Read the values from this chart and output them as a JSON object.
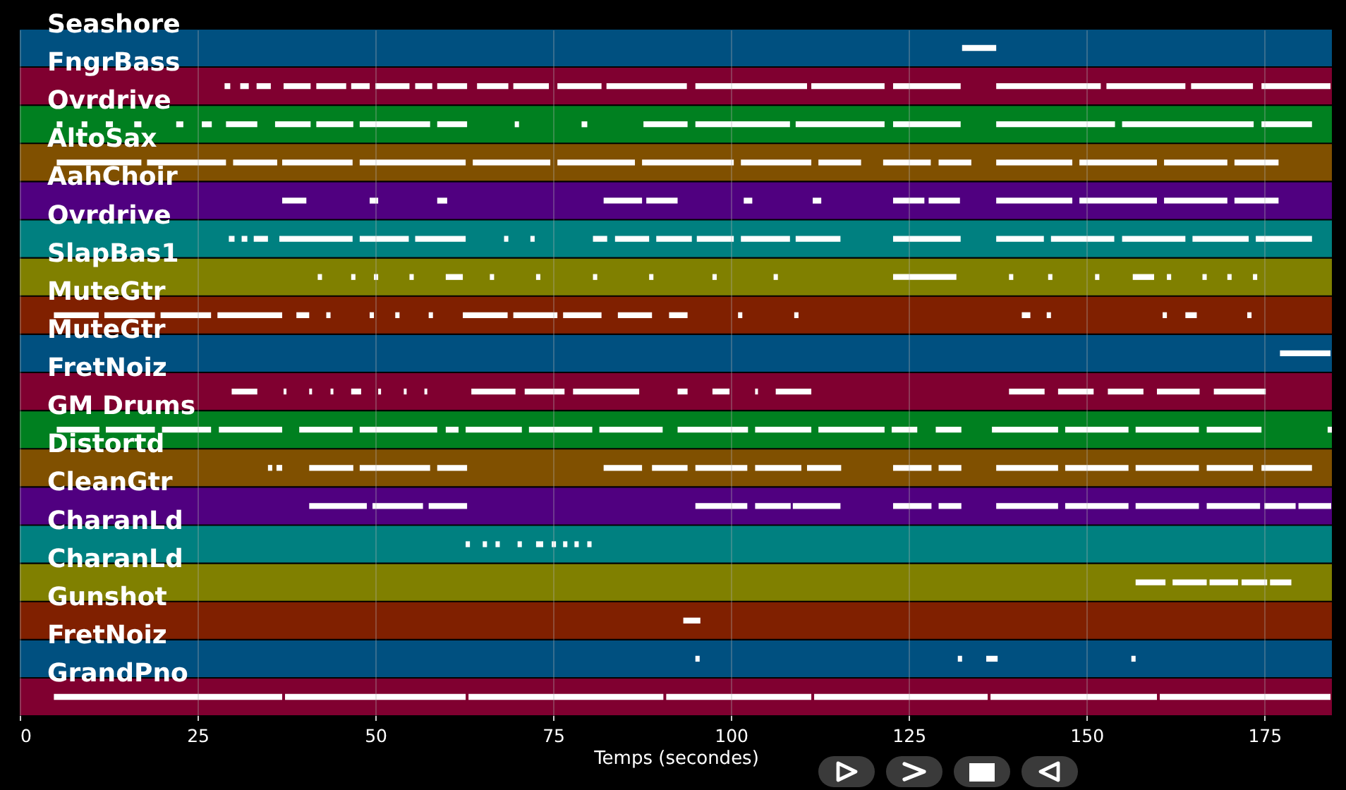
{
  "chart_data": {
    "type": "bar",
    "orientation": "horizontal",
    "xlabel": "Temps (secondes)",
    "categories": [
      "Seashore",
      "FngrBass",
      "Ovrdrive",
      "AltoSax",
      "AahChoir",
      "Ovrdrive",
      "SlapBas1",
      "MuteGtr",
      "MuteGtr",
      "FretNoiz",
      "GM Drums",
      "Distortd",
      "CleanGtr",
      "CharanLd",
      "CharanLd",
      "Gunshot",
      "FretNoiz",
      "GrandPno"
    ],
    "xlim": [
      0,
      184.5
    ],
    "xticks": [
      0,
      25,
      50,
      75,
      100,
      125,
      150,
      175
    ],
    "grid": "x",
    "series": [
      {
        "colors": [
          "#005080",
          "#800030",
          "#008020",
          "#805000",
          "#500080",
          "#008080",
          "#808000",
          "#802000",
          "#005080",
          "#800030",
          "#008020",
          "#805000",
          "#500080",
          "#008080",
          "#808000",
          "#802000",
          "#005080",
          "#800030"
        ],
        "values": [
          184.5,
          184.5,
          184.5,
          184.5,
          184.5,
          184.5,
          184.5,
          184.5,
          184.5,
          184.5,
          184.5,
          184.5,
          184.5,
          184.5,
          184.5,
          184.5,
          184.5,
          184.5
        ]
      },
      {
        "color": "#ffffff",
        "base": [
          132.5,
          28.8,
          5.2,
          5.2,
          36.9,
          29.4,
          41.9,
          4.8,
          177.2,
          29.8,
          5.2,
          34.9,
          40.7,
          62.7,
          156.9,
          93.3,
          95.0,
          4.8
        ],
        "values": [
          4.8,
          0.8,
          0.8,
          11.9,
          3.4,
          0.8,
          0.6,
          6.3,
          7.1,
          3.6,
          6.0,
          0.6,
          8.1,
          0.6,
          4.2,
          2.4,
          0.6,
          32.1
        ]
      },
      {
        "color": "#ffffff",
        "base": [
          null,
          31.0,
          8.7,
          17.9,
          49.2,
          31.2,
          46.6,
          11.9,
          null,
          37.1,
          12.1,
          36.1,
          49.6,
          65.1,
          162.1,
          null,
          131.9,
          37.3
        ],
        "values": [
          null,
          1.2,
          0.8,
          11.1,
          1.2,
          0.8,
          0.6,
          7.1,
          null,
          0.4,
          6.9,
          0.8,
          7.1,
          0.6,
          4.8,
          null,
          0.6,
          25.4
        ]
      },
      {
        "color": "#ffffff",
        "base": [
          null,
          33.3,
          12.1,
          30.0,
          58.7,
          32.9,
          49.8,
          19.8,
          null,
          40.7,
          20.0,
          40.7,
          57.5,
          66.9,
          167.3,
          null,
          135.9,
          63.1
        ],
        "values": [
          null,
          2.0,
          1.0,
          6.2,
          1.4,
          2.0,
          0.6,
          7.1,
          null,
          0.4,
          6.9,
          6.2,
          5.4,
          0.6,
          4.0,
          null,
          1.6,
          27.4
        ]
      },
      {
        "color": "#ffffff",
        "base": [
          null,
          37.1,
          16.1,
          36.9,
          82.1,
          36.5,
          54.8,
          27.8,
          null,
          43.7,
          28.0,
          47.8,
          95.0,
          70.0,
          171.8,
          null,
          156.3,
          90.9
        ],
        "values": [
          null,
          3.8,
          1.0,
          9.9,
          5.4,
          10.3,
          0.6,
          9.1,
          null,
          0.4,
          8.9,
          9.9,
          7.3,
          0.6,
          3.6,
          null,
          0.6,
          20.4
        ]
      },
      {
        "color": "#ffffff",
        "base": [
          null,
          41.7,
          22.0,
          47.8,
          88.1,
          47.8,
          59.9,
          38.9,
          null,
          46.6,
          39.3,
          58.7,
          103.4,
          72.6,
          175.8,
          null,
          null,
          111.7
        ],
        "values": [
          null,
          4.2,
          1.0,
          14.9,
          4.4,
          6.9,
          2.4,
          1.8,
          null,
          1.4,
          7.5,
          4.2,
          5.0,
          1.0,
          3.0,
          null,
          null,
          24.4
        ]
      },
      {
        "color": "#ffffff",
        "base": [
          null,
          46.6,
          25.6,
          63.7,
          101.8,
          55.6,
          66.1,
          43.1,
          null,
          50.4,
          47.8,
          82.1,
          108.7,
          74.8,
          null,
          null,
          null,
          136.5
        ],
        "values": [
          null,
          2.6,
          1.4,
          10.9,
          1.2,
          7.1,
          0.6,
          0.6,
          null,
          0.4,
          10.9,
          5.4,
          6.7,
          0.6,
          null,
          null,
          null,
          23.4
        ]
      },
      {
        "color": "#ffffff",
        "base": [
          null,
          50.0,
          29.0,
          75.6,
          111.5,
          68.1,
          72.6,
          49.2,
          null,
          54.0,
          59.9,
          88.9,
          122.8,
          76.4,
          null,
          null,
          null,
          160.3
        ],
        "values": [
          null,
          4.8,
          4.4,
          10.9,
          1.2,
          0.6,
          0.6,
          0.6,
          null,
          0.4,
          1.8,
          5.0,
          5.4,
          0.6,
          null,
          null,
          null,
          24.0
        ]
      },
      {
        "color": "#ffffff",
        "base": [
          null,
          55.6,
          35.9,
          87.5,
          122.8,
          71.8,
          80.6,
          52.8,
          null,
          56.9,
          62.7,
          95.0,
          129.2,
          78.0,
          null,
          null,
          null,
          null
        ],
        "values": [
          null,
          2.4,
          5.0,
          12.9,
          4.4,
          0.6,
          0.6,
          0.6,
          null,
          0.4,
          7.9,
          7.3,
          3.2,
          0.6,
          null,
          null,
          null,
          null
        ]
      },
      {
        "color": "#ffffff",
        "base": [
          null,
          58.7,
          41.7,
          101.4,
          127.8,
          80.6,
          88.5,
          57.5,
          null,
          63.5,
          71.6,
          103.4,
          137.3,
          79.8,
          null,
          null,
          null,
          null
        ],
        "values": [
          null,
          4.2,
          5.2,
          9.9,
          4.4,
          2.0,
          0.6,
          0.6,
          null,
          6.2,
          8.9,
          6.5,
          8.7,
          0.6,
          null,
          null,
          null,
          null
        ]
      },
      {
        "color": "#ffffff",
        "base": [
          null,
          64.3,
          47.8,
          112.3,
          137.3,
          83.7,
          97.4,
          62.3,
          null,
          71.0,
          81.5,
          110.7,
          147.0,
          null,
          null,
          null,
          null,
          null
        ],
        "values": [
          null,
          4.4,
          9.9,
          6.0,
          10.7,
          4.8,
          0.6,
          6.3,
          null,
          5.6,
          8.9,
          4.8,
          8.9,
          null,
          null,
          null,
          null,
          null
        ]
      },
      {
        "color": "#ffffff",
        "base": [
          null,
          69.4,
          58.7,
          121.4,
          149.0,
          89.5,
          106.0,
          69.4,
          null,
          77.8,
          92.5,
          122.8,
          156.9,
          null,
          null,
          null,
          null,
          null
        ],
        "values": [
          null,
          5.0,
          4.2,
          6.7,
          10.9,
          5.0,
          0.6,
          6.2,
          null,
          9.3,
          9.9,
          5.4,
          8.9,
          null,
          null,
          null,
          null,
          null
        ]
      },
      {
        "color": "#ffffff",
        "base": [
          null,
          75.6,
          69.6,
          129.2,
          160.9,
          95.2,
          122.8,
          76.4,
          null,
          92.5,
          103.4,
          129.2,
          166.9,
          null,
          null,
          null,
          null,
          null
        ],
        "values": [
          null,
          6.2,
          0.6,
          4.6,
          8.9,
          5.2,
          8.9,
          5.4,
          null,
          1.4,
          7.9,
          3.2,
          7.5,
          null,
          null,
          null,
          null,
          null
        ]
      },
      {
        "color": "#ffffff",
        "base": [
          null,
          82.5,
          79.0,
          137.3,
          170.8,
          101.4,
          139.1,
          84.1,
          null,
          97.4,
          112.3,
          137.3,
          175.0,
          null,
          null,
          null,
          null,
          null
        ],
        "values": [
          null,
          11.3,
          0.8,
          10.7,
          6.2,
          6.9,
          0.6,
          4.8,
          null,
          2.4,
          9.3,
          8.7,
          4.4,
          null,
          null,
          null,
          null,
          null
        ]
      },
      {
        "color": "#ffffff",
        "base": [
          null,
          95.0,
          87.7,
          149.0,
          null,
          109.1,
          144.6,
          91.3,
          null,
          103.4,
          122.6,
          147.0,
          179.8,
          null,
          null,
          null,
          null,
          null
        ],
        "values": [
          null,
          15.7,
          6.2,
          10.9,
          null,
          6.3,
          0.6,
          2.6,
          null,
          0.4,
          3.6,
          8.9,
          4.6,
          null,
          null,
          null,
          null,
          null
        ]
      },
      {
        "color": "#ffffff",
        "base": [
          null,
          111.3,
          95.0,
          160.9,
          null,
          122.8,
          151.2,
          101.0,
          null,
          106.3,
          128.8,
          156.9,
          null,
          null,
          null,
          null,
          null,
          null
        ],
        "values": [
          null,
          10.3,
          13.3,
          8.9,
          null,
          9.5,
          0.6,
          0.6,
          null,
          5.0,
          3.6,
          8.9,
          null,
          null,
          null,
          null,
          null,
          null
        ]
      },
      {
        "color": "#ffffff",
        "base": [
          null,
          122.8,
          109.1,
          170.8,
          null,
          137.3,
          156.5,
          108.9,
          null,
          139.1,
          136.7,
          166.9,
          null,
          null,
          null,
          null,
          null,
          null
        ],
        "values": [
          null,
          9.5,
          12.5,
          6.2,
          null,
          6.7,
          3.0,
          0.6,
          null,
          5.0,
          9.3,
          6.5,
          null,
          null,
          null,
          null,
          null,
          null
        ]
      },
      {
        "color": "#ffffff",
        "base": [
          null,
          137.3,
          122.8,
          null,
          null,
          145.0,
          161.3,
          140.9,
          null,
          146.0,
          147.0,
          174.6,
          null,
          null,
          null,
          null,
          null,
          null
        ],
        "values": [
          null,
          14.7,
          9.5,
          null,
          null,
          8.9,
          0.6,
          1.2,
          null,
          5.0,
          8.9,
          7.1,
          null,
          null,
          null,
          null,
          null,
          null
        ]
      },
      {
        "color": "#ffffff",
        "base": [
          null,
          152.8,
          137.3,
          null,
          null,
          155.0,
          166.3,
          144.4,
          null,
          153.0,
          156.9,
          null,
          null,
          null,
          null,
          null,
          null,
          null
        ],
        "values": [
          null,
          11.1,
          16.7,
          null,
          null,
          8.9,
          0.6,
          0.6,
          null,
          5.0,
          8.9,
          null,
          null,
          null,
          null,
          null,
          null,
          null
        ]
      },
      {
        "color": "#ffffff",
        "base": [
          null,
          164.7,
          155.0,
          null,
          null,
          164.9,
          169.8,
          160.7,
          null,
          159.9,
          166.9,
          null,
          null,
          null,
          null,
          null,
          null,
          null
        ],
        "values": [
          null,
          8.7,
          18.5,
          null,
          null,
          7.9,
          0.6,
          0.6,
          null,
          6.0,
          7.7,
          null,
          null,
          null,
          null,
          null,
          null,
          null
        ]
      },
      {
        "color": "#ffffff",
        "base": [
          null,
          174.6,
          174.6,
          null,
          null,
          173.8,
          173.4,
          163.9,
          null,
          167.9,
          183.9,
          null,
          null,
          null,
          null,
          null,
          null,
          null
        ],
        "values": [
          null,
          9.7,
          7.1,
          null,
          null,
          7.9,
          0.6,
          1.6,
          null,
          7.3,
          0.6,
          null,
          null,
          null,
          null,
          null,
          null,
          null
        ]
      },
      {
        "color": "#ffffff",
        "base": [
          null,
          null,
          null,
          null,
          null,
          null,
          null,
          172.6,
          null,
          null,
          null,
          null,
          null,
          null,
          null,
          null,
          null,
          null
        ],
        "values": [
          null,
          null,
          null,
          null,
          null,
          null,
          null,
          0.6,
          null,
          null,
          null,
          null,
          null,
          null,
          null,
          null,
          null,
          null
        ]
      }
    ]
  }
}
